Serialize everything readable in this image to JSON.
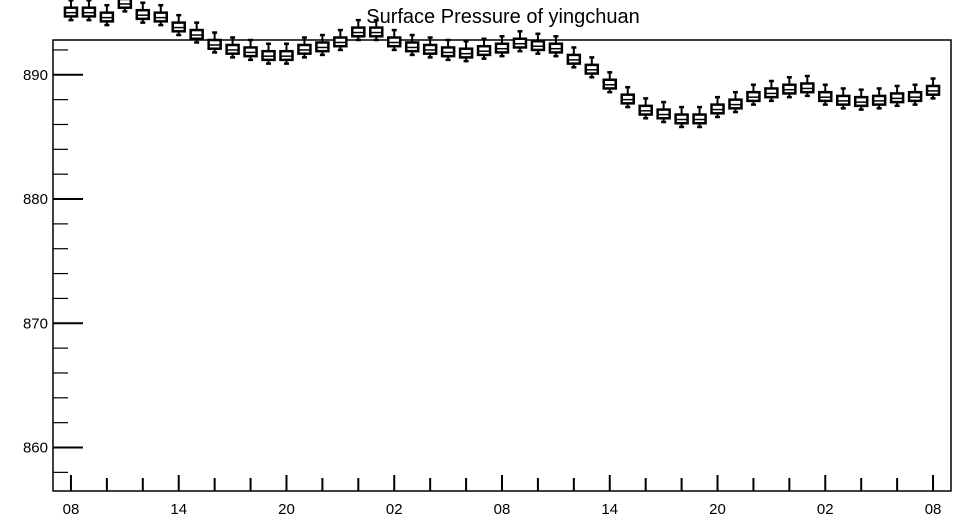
{
  "chart_data": {
    "type": "boxplot",
    "title": "Surface Pressure of yingchuan",
    "xlabel": "",
    "ylabel": "",
    "ylim": [
      856.5,
      892.8
    ],
    "y_ticks": [
      860,
      870,
      880,
      890
    ],
    "y_tick_labels": [
      "860",
      "870",
      "880",
      "890"
    ],
    "x_tick_labels": [
      "08",
      "14",
      "20",
      "02",
      "08",
      "14",
      "20",
      "02",
      "08"
    ],
    "x_tick_positions": [
      0,
      6,
      12,
      18,
      24,
      30,
      36,
      42,
      48
    ],
    "x_range": [
      -1,
      49
    ],
    "minor_ticks_per_major": 2,
    "grid": false,
    "series": [
      {
        "medians": [
          895.0,
          895.0,
          894.6,
          895.7,
          894.8,
          894.6,
          893.8,
          893.2,
          892.4,
          892.0,
          891.8,
          891.5,
          891.5,
          892.0,
          892.2,
          892.6,
          893.4,
          893.4,
          892.6,
          892.2,
          892.0,
          891.8,
          891.7,
          891.9,
          892.1,
          892.5,
          892.3,
          892.1,
          891.2,
          890.4,
          889.2,
          888.0,
          887.1,
          886.8,
          886.4,
          886.4,
          887.2,
          887.6,
          888.2,
          888.5,
          888.8,
          888.9,
          888.2,
          887.9,
          887.8,
          887.9,
          888.1,
          888.2,
          888.7
        ],
        "q1": [
          894.7,
          894.7,
          894.3,
          895.4,
          894.5,
          894.3,
          893.5,
          892.9,
          892.1,
          891.7,
          891.5,
          891.2,
          891.2,
          891.7,
          891.9,
          892.3,
          893.1,
          893.1,
          892.3,
          891.9,
          891.7,
          891.5,
          891.4,
          891.6,
          891.8,
          892.2,
          892.0,
          891.8,
          890.9,
          890.1,
          888.9,
          887.7,
          886.8,
          886.5,
          886.1,
          886.1,
          886.9,
          887.3,
          887.9,
          888.2,
          888.5,
          888.6,
          887.9,
          887.6,
          887.5,
          887.6,
          887.8,
          887.9,
          888.4
        ],
        "q3": [
          895.4,
          895.4,
          895.0,
          896.1,
          895.2,
          895.0,
          894.2,
          893.6,
          892.8,
          892.4,
          892.2,
          891.9,
          891.9,
          892.4,
          892.6,
          893.0,
          893.8,
          893.8,
          893.0,
          892.6,
          892.4,
          892.2,
          892.1,
          892.3,
          892.5,
          892.9,
          892.7,
          892.5,
          891.6,
          890.8,
          889.6,
          888.4,
          887.5,
          887.2,
          886.8,
          886.8,
          887.6,
          888.0,
          888.6,
          888.9,
          889.2,
          889.3,
          888.6,
          888.3,
          888.2,
          888.3,
          888.5,
          888.6,
          889.1
        ],
        "min": [
          894.4,
          894.4,
          894.0,
          895.1,
          894.2,
          894.0,
          893.2,
          892.6,
          891.8,
          891.4,
          891.2,
          890.9,
          890.9,
          891.4,
          891.6,
          892.0,
          892.8,
          892.8,
          892.0,
          891.6,
          891.4,
          891.2,
          891.1,
          891.3,
          891.5,
          891.9,
          891.7,
          891.5,
          890.6,
          889.8,
          888.6,
          887.4,
          886.5,
          886.2,
          885.8,
          885.8,
          886.6,
          887.0,
          887.6,
          887.9,
          888.2,
          888.3,
          887.6,
          887.3,
          887.2,
          887.3,
          887.5,
          887.6,
          888.1
        ],
        "max": [
          896.0,
          896.0,
          895.6,
          896.7,
          895.8,
          895.6,
          894.8,
          894.2,
          893.4,
          893.0,
          892.8,
          892.5,
          892.5,
          893.0,
          893.2,
          893.6,
          894.4,
          894.4,
          893.6,
          893.2,
          893.0,
          892.8,
          892.7,
          892.9,
          893.1,
          893.5,
          893.3,
          893.1,
          892.2,
          891.4,
          890.2,
          889.0,
          888.1,
          887.8,
          887.4,
          887.4,
          888.2,
          888.6,
          889.2,
          889.5,
          889.8,
          889.9,
          889.2,
          888.9,
          888.8,
          888.9,
          889.1,
          889.2,
          889.7
        ]
      }
    ]
  }
}
